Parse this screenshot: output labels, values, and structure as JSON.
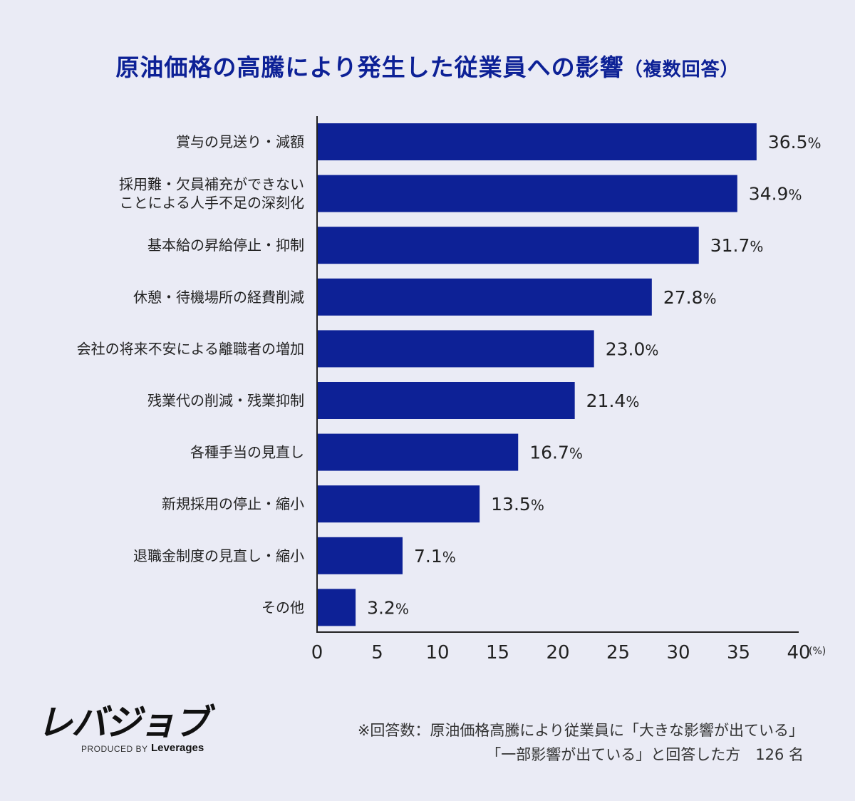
{
  "title": {
    "main": "原油価格の高騰により発生した従業員への影響",
    "sub": "（複数回答）"
  },
  "chart_data": {
    "type": "bar",
    "orientation": "horizontal",
    "categories": [
      [
        "賞与の見送り・減額"
      ],
      [
        "採用難・欠員補充ができない",
        "ことによる人手不足の深刻化"
      ],
      [
        "基本給の昇給停止・抑制"
      ],
      [
        "休憩・待機場所の経費削減"
      ],
      [
        "会社の将来不安による離職者の増加"
      ],
      [
        "残業代の削減・残業抑制"
      ],
      [
        "各種手当の見直し"
      ],
      [
        "新規採用の停止・縮小"
      ],
      [
        "退職金制度の見直し・縮小"
      ],
      [
        "その他"
      ]
    ],
    "values": [
      36.5,
      34.9,
      31.7,
      27.8,
      23.0,
      21.4,
      16.7,
      13.5,
      7.1,
      3.2
    ],
    "value_suffix": "%",
    "xlim": [
      0,
      40
    ],
    "ticks": [
      0,
      5,
      10,
      15,
      20,
      25,
      30,
      35,
      40
    ],
    "xunit": "(%)",
    "bar_color": "#0d2196",
    "grid": false
  },
  "logo": {
    "name": "レバジョブ",
    "produced_by": "PRODUCED BY",
    "brand": "Leverages"
  },
  "note": {
    "line1": "※回答数：原油価格高騰により従業員に「大きな影響が出ている」",
    "line2": "「一部影響が出ている」と回答した方　126 名"
  },
  "colors": {
    "background": "#eaebf5",
    "title": "#0d2196",
    "bar": "#0d2196"
  }
}
